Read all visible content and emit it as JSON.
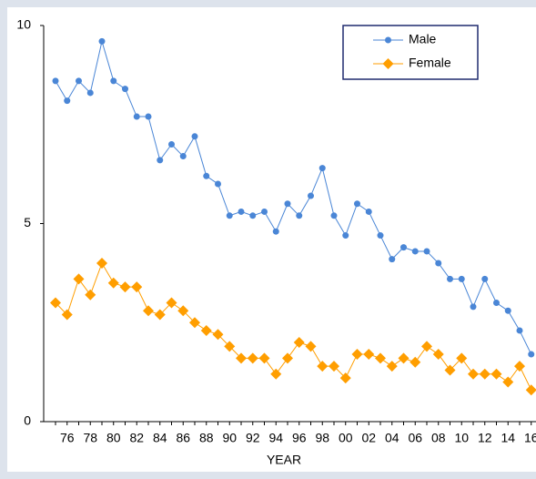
{
  "chart_data": {
    "type": "line",
    "x_label": "YEAR",
    "categories": [
      null,
      "76",
      null,
      "78",
      null,
      "80",
      null,
      "82",
      null,
      "84",
      null,
      "86",
      null,
      "88",
      null,
      "90",
      null,
      "92",
      null,
      "94",
      null,
      "96",
      null,
      "98",
      null,
      "00",
      null,
      "02",
      null,
      "04",
      null,
      "06",
      null,
      "08",
      null,
      "10",
      null,
      "12",
      null,
      "14",
      null,
      "16"
    ],
    "series": [
      {
        "name": "Male",
        "color": "#4a86d6",
        "marker": "circle",
        "values": [
          8.6,
          8.1,
          8.6,
          8.3,
          9.6,
          8.6,
          8.4,
          7.7,
          7.7,
          6.6,
          7.0,
          6.7,
          7.2,
          6.2,
          6.0,
          5.2,
          5.3,
          5.2,
          5.3,
          4.8,
          5.5,
          5.2,
          5.7,
          6.4,
          5.2,
          4.7,
          5.5,
          5.3,
          4.7,
          4.1,
          4.4,
          4.3,
          4.3,
          4.0,
          3.6,
          3.6,
          2.9,
          3.6,
          3.0,
          2.8,
          2.3,
          1.7
        ]
      },
      {
        "name": "Female",
        "color": "#ff9e00",
        "marker": "diamond",
        "values": [
          3.0,
          2.7,
          3.6,
          3.2,
          4.0,
          3.5,
          3.4,
          3.4,
          2.8,
          2.7,
          3.0,
          2.8,
          2.5,
          2.3,
          2.2,
          1.9,
          1.6,
          1.6,
          1.6,
          1.2,
          1.6,
          2.0,
          1.9,
          1.4,
          1.4,
          1.1,
          1.7,
          1.7,
          1.6,
          1.4,
          1.6,
          1.5,
          1.9,
          1.7,
          1.3,
          1.6,
          1.2,
          1.2,
          1.2,
          1.0,
          1.4,
          0.8
        ]
      }
    ],
    "ylim": [
      0,
      10
    ],
    "yticks": [
      0,
      5,
      10
    ],
    "legend": "top-right"
  }
}
